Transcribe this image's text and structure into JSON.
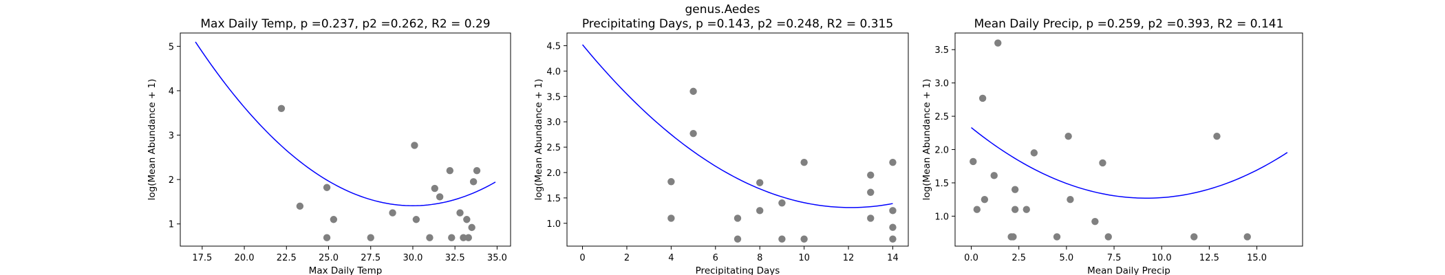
{
  "figure": {
    "suptitle": "genus.Aedes"
  },
  "colors": {
    "points": "#808080",
    "fit_line": "#0000ff",
    "axes": "#000000"
  },
  "chart_data": [
    {
      "type": "scatter",
      "title": "Max Daily Temp, p =0.237, p2 =0.262, R2 = 0.29",
      "xlabel": "Max Daily Temp",
      "ylabel": "log(Mean Abundance + 1)",
      "xlim": [
        16.2,
        35.8
      ],
      "ylim": [
        0.5,
        5.3
      ],
      "xticks": [
        "17.5",
        "20.0",
        "22.5",
        "25.0",
        "27.5",
        "30.0",
        "32.5",
        "35.0"
      ],
      "xtick_values": [
        17.5,
        20.0,
        22.5,
        25.0,
        27.5,
        30.0,
        32.5,
        35.0
      ],
      "yticks": [
        "1",
        "2",
        "3",
        "4",
        "5"
      ],
      "ytick_values": [
        1,
        2,
        3,
        4,
        5
      ],
      "grid": false,
      "points": {
        "x": [
          22.2,
          23.3,
          24.9,
          25.3,
          24.9,
          27.5,
          28.8,
          30.1,
          30.2,
          31.0,
          31.3,
          31.6,
          32.2,
          32.3,
          32.8,
          33.0,
          33.2,
          33.3,
          33.5,
          33.6,
          33.8
        ],
        "y": [
          3.6,
          1.4,
          1.82,
          1.1,
          0.69,
          0.69,
          1.25,
          2.77,
          1.1,
          0.69,
          1.8,
          1.61,
          2.2,
          0.69,
          1.25,
          0.69,
          1.1,
          0.69,
          0.92,
          1.95,
          2.2
        ]
      },
      "fit": {
        "x_range": [
          17.1,
          34.9
        ],
        "y_at_start": 5.1,
        "y_min": 1.41,
        "x_at_min": 30.0,
        "y_at_end": 1.94
      }
    },
    {
      "type": "scatter",
      "title": "Precipitating Days, p =0.143, p2 =0.248, R2 = 0.315",
      "xlabel": "Precipitating Days",
      "ylabel": "log(Mean Abundance + 1)",
      "xlim": [
        -0.7,
        14.7
      ],
      "ylim": [
        0.55,
        4.75
      ],
      "xticks": [
        "0",
        "2",
        "4",
        "6",
        "8",
        "10",
        "12",
        "14"
      ],
      "xtick_values": [
        0,
        2,
        4,
        6,
        8,
        10,
        12,
        14
      ],
      "yticks": [
        "1.0",
        "1.5",
        "2.0",
        "2.5",
        "3.0",
        "3.5",
        "4.0",
        "4.5"
      ],
      "ytick_values": [
        1.0,
        1.5,
        2.0,
        2.5,
        3.0,
        3.5,
        4.0,
        4.5
      ],
      "grid": false,
      "points": {
        "x": [
          4,
          4,
          5,
          5,
          7,
          7,
          8,
          8,
          9,
          9,
          10,
          10,
          13,
          13,
          13,
          14,
          14,
          14,
          14
        ],
        "y": [
          1.82,
          1.1,
          3.6,
          2.77,
          1.1,
          0.69,
          1.8,
          1.25,
          1.4,
          0.69,
          2.2,
          0.69,
          1.95,
          1.61,
          1.1,
          2.2,
          1.25,
          0.92,
          0.69
        ]
      },
      "fit": {
        "x_range": [
          0,
          14
        ],
        "y_at_start": 4.52,
        "y_min": 1.31,
        "x_at_min": 12.1,
        "y_at_end": 1.38
      }
    },
    {
      "type": "scatter",
      "title": "Mean Daily Precip, p =0.259, p2 =0.393, R2 = 0.141",
      "xlabel": "Mean Daily Precip",
      "ylabel": "log(Mean Abundance + 1)",
      "xlim": [
        -0.85,
        17.4
      ],
      "ylim": [
        0.55,
        3.75
      ],
      "xticks": [
        "0.0",
        "2.5",
        "5.0",
        "7.5",
        "10.0",
        "12.5",
        "15.0"
      ],
      "xtick_values": [
        0.0,
        2.5,
        5.0,
        7.5,
        10.0,
        12.5,
        15.0
      ],
      "yticks": [
        "1.0",
        "1.5",
        "2.0",
        "2.5",
        "3.0",
        "3.5"
      ],
      "ytick_values": [
        1.0,
        1.5,
        2.0,
        2.5,
        3.0,
        3.5
      ],
      "grid": false,
      "points": {
        "x": [
          0.1,
          0.3,
          0.6,
          0.7,
          1.2,
          1.4,
          2.1,
          2.2,
          2.3,
          2.3,
          2.9,
          3.3,
          4.5,
          5.1,
          5.2,
          6.5,
          6.9,
          7.2,
          11.7,
          12.9,
          14.5
        ],
        "y": [
          1.82,
          1.1,
          2.77,
          1.25,
          1.61,
          3.6,
          0.69,
          0.69,
          1.1,
          1.4,
          1.1,
          1.95,
          0.69,
          2.2,
          1.25,
          0.92,
          1.8,
          0.69,
          0.69,
          2.2,
          0.69
        ]
      },
      "fit": {
        "x_range": [
          0,
          16.6
        ],
        "y_at_start": 2.33,
        "y_min": 1.27,
        "x_at_min": 9.2,
        "y_at_end": 1.91
      }
    }
  ]
}
